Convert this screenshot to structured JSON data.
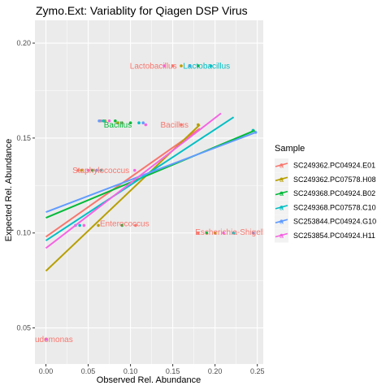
{
  "chart_data": {
    "type": "scatter",
    "title": "Zymo.Ext: Variablity for Qiagen DSP Virus",
    "xlabel": "Observed Rel. Abundance",
    "ylabel": "Expected Rel. Abundance",
    "xlim": [
      -0.013,
      0.257
    ],
    "ylim": [
      0.031,
      0.212
    ],
    "xticks": [
      0.0,
      0.05,
      0.1,
      0.15,
      0.2,
      0.25
    ],
    "xtick_labels": [
      "0.00",
      "0.05",
      "0.10",
      "0.15",
      "0.20",
      "0.25"
    ],
    "yticks": [
      0.05,
      0.1,
      0.15,
      0.2
    ],
    "ytick_labels": [
      "0.05",
      "0.10",
      "0.15",
      "0.20"
    ],
    "grid": true,
    "background": "#EBEBEB",
    "legend": {
      "title": "Sample",
      "position": "right"
    },
    "series": [
      {
        "name": "SC249362.PC04924.E01",
        "color": "#F8766D",
        "points": [
          [
            0.0,
            0.044
          ],
          [
            0.038,
            0.133
          ],
          [
            0.065,
            0.159
          ],
          [
            0.106,
            0.104
          ],
          [
            0.15,
            0.188
          ],
          [
            0.16,
            0.157
          ],
          [
            0.18,
            0.1
          ],
          [
            0.09,
            0.158
          ]
        ],
        "fit": [
          [
            0.0,
            0.098
          ],
          [
            0.182,
            0.155
          ]
        ]
      },
      {
        "name": "SC249362.PC07578.H08",
        "color": "#B79F00",
        "points": [
          [
            0.0,
            0.044
          ],
          [
            0.042,
            0.133
          ],
          [
            0.062,
            0.104
          ],
          [
            0.085,
            0.158
          ],
          [
            0.16,
            0.188
          ],
          [
            0.18,
            0.157
          ],
          [
            0.2,
            0.1
          ],
          [
            0.07,
            0.159
          ]
        ],
        "fit": [
          [
            0.0,
            0.08
          ],
          [
            0.182,
            0.157
          ]
        ]
      },
      {
        "name": "SC249368.PC04924.B02",
        "color": "#00BA38",
        "points": [
          [
            0.0,
            0.044
          ],
          [
            0.055,
            0.133
          ],
          [
            0.09,
            0.104
          ],
          [
            0.082,
            0.159
          ],
          [
            0.18,
            0.188
          ],
          [
            0.19,
            0.1
          ],
          [
            0.245,
            0.154
          ],
          [
            0.1,
            0.158
          ]
        ],
        "fit": [
          [
            0.0,
            0.108
          ],
          [
            0.247,
            0.154
          ]
        ]
      },
      {
        "name": "SC249368.PC07578.C10",
        "color": "#00BFC4",
        "points": [
          [
            0.0,
            0.044
          ],
          [
            0.065,
            0.133
          ],
          [
            0.04,
            0.104
          ],
          [
            0.068,
            0.159
          ],
          [
            0.195,
            0.188
          ],
          [
            0.222,
            0.1
          ],
          [
            0.245,
            0.154
          ],
          [
            0.11,
            0.158
          ]
        ],
        "fit": [
          [
            0.0,
            0.096
          ],
          [
            0.222,
            0.161
          ]
        ]
      },
      {
        "name": "SC253844.PC04924.G10",
        "color": "#619CFF",
        "points": [
          [
            0.0,
            0.044
          ],
          [
            0.06,
            0.133
          ],
          [
            0.035,
            0.104
          ],
          [
            0.063,
            0.159
          ],
          [
            0.17,
            0.188
          ],
          [
            0.245,
            0.1
          ],
          [
            0.248,
            0.153
          ],
          [
            0.115,
            0.158
          ]
        ],
        "fit": [
          [
            0.0,
            0.111
          ],
          [
            0.248,
            0.153
          ]
        ]
      },
      {
        "name": "SC253854.PC04924.H11",
        "color": "#F564E3",
        "points": [
          [
            0.0,
            0.044
          ],
          [
            0.05,
            0.133
          ],
          [
            0.045,
            0.104
          ],
          [
            0.075,
            0.159
          ],
          [
            0.14,
            0.188
          ],
          [
            0.118,
            0.157
          ],
          [
            0.21,
            0.1
          ],
          [
            0.105,
            0.133
          ]
        ],
        "fit": [
          [
            0.0,
            0.092
          ],
          [
            0.207,
            0.163
          ]
        ]
      }
    ],
    "annotations": [
      {
        "text": "Lactobacillus",
        "x": 0.127,
        "y": 0.1866,
        "color": "#F8766D"
      },
      {
        "text": "Lactobacillus",
        "x": 0.19,
        "y": 0.1866,
        "color": "#00BFC4"
      },
      {
        "text": "Bacillus",
        "x": 0.085,
        "y": 0.1555,
        "color": "#00BA38"
      },
      {
        "text": "Bacillus",
        "x": 0.152,
        "y": 0.1555,
        "color": "#F8766D"
      },
      {
        "text": "Staphylococcus",
        "x": 0.065,
        "y": 0.1315,
        "color": "#F8766D"
      },
      {
        "text": "Enterococcus",
        "x": 0.093,
        "y": 0.1035,
        "color": "#F8766D"
      },
      {
        "text": "Escherichia-Shigella",
        "x": 0.22,
        "y": 0.099,
        "color": "#F8766D"
      },
      {
        "text": "udomonas",
        "x": -0.013,
        "y": 0.0425,
        "color": "#F8766D",
        "anchor": "start"
      }
    ]
  }
}
